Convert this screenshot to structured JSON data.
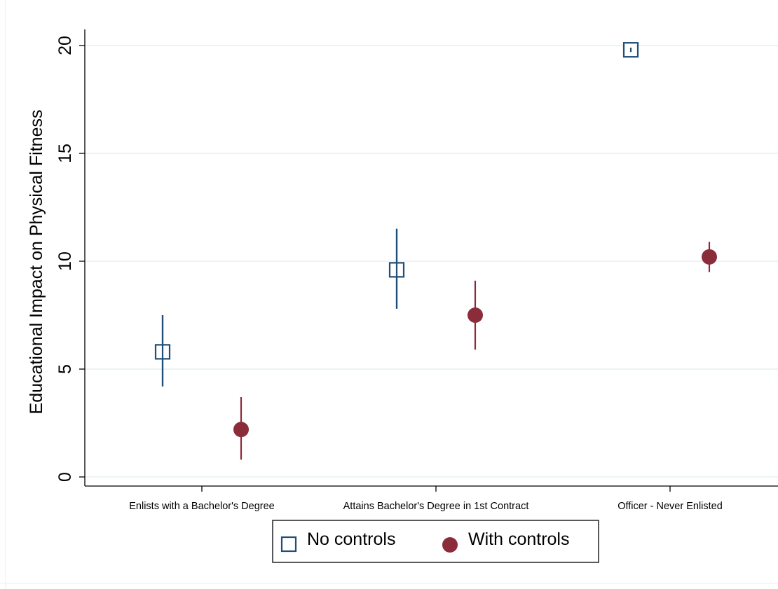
{
  "chart_data": {
    "type": "scatter",
    "title": "",
    "xlabel": "",
    "ylabel": "Educational Impact on Physical Fitness",
    "categories": [
      "Enlists with a Bachelor's Degree",
      "Attains Bachelor's Degree in 1st Contract",
      "Officer - Never Enlisted"
    ],
    "ylim": [
      0,
      20
    ],
    "yticks": [
      "0",
      "5",
      "10",
      "15",
      "20"
    ],
    "grid": true,
    "legend_position": "bottom",
    "series": [
      {
        "name": "No controls",
        "marker": "hollow-square",
        "color": "#1f4e79",
        "values": [
          5.8,
          9.6,
          19.8
        ],
        "ci_low": [
          4.2,
          7.8,
          19.7
        ],
        "ci_high": [
          7.5,
          11.5,
          19.9
        ]
      },
      {
        "name": "With controls",
        "marker": "filled-circle",
        "color": "#8b2c3a",
        "values": [
          2.2,
          7.5,
          10.2
        ],
        "ci_low": [
          0.8,
          5.9,
          9.5
        ],
        "ci_high": [
          3.7,
          9.1,
          10.9
        ]
      }
    ]
  }
}
